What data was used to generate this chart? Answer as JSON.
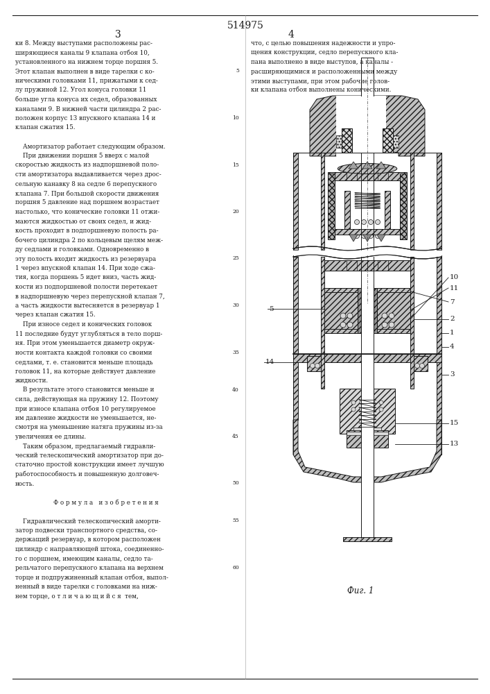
{
  "patent_number": "514975",
  "page_left": "3",
  "page_right": "4",
  "fig_label": "Фиг. 1",
  "background_color": "#ffffff",
  "text_color": "#1a1a1a",
  "line_color": "#1a1a1a",
  "col_left_text": [
    "ки 8. Между выступами расположены рас-",
    "ширяющиеся каналы 9 клапана отбоя 10,",
    "установленного на нижнем торце поршня 5.",
    "Этот клапан выполнен в виде тарелки с ко-",
    "ническими головками 11, прижатыми к сед-",
    "лу пружиной 12. Угол конуса головки 11",
    "больше угла конуса их седел, образованных",
    "каналами 9. В нижней части цилиндра 2 рас-",
    "положен корпус 13 впускного клапана 14 и",
    "клапан сжатия 15.",
    "",
    "    Амортизатор работает следующим образом.",
    "    При движении поршня 5 вверх с малой",
    "скоростью жидкость из надпоршневой поло-",
    "сти амортизатора выдавливается через дрос-",
    "сельную канавку 8 на седле 6 перепускного",
    "клапана 7. При большой скорости движения",
    "поршня 5 давление над поршнем возрастает",
    "настолько, что конические головки 11 отжи-",
    "маются жидкостью от своих седел, и жид-",
    "кость проходит в подпоршневую полость ра-",
    "бочего цилиндра 2 по кольцевым щелям меж-",
    "ду седлами и головками. Одновременно в",
    "эту полость входит жидкость из резервуара",
    "1 через впускной клапан 14. При ходе сжа-",
    "тия, когда поршень 5 идет вниз, часть жид-",
    "кости из подпоршневой полости перетекает",
    "в надпоршневую через перепускной клапан 7,",
    "а часть жидкости вытесняется в резервуар 1",
    "через клапан сжатия 15.",
    "    При износе седел и конических головок",
    "11 последние будут углубляться в тело порш-",
    "ня. При этом уменьшается диаметр окруж-",
    "ности контакта каждой головки со своими",
    "седлами, т. е. становится меньше площадь",
    "головок 11, на которые действует давление",
    "жидкости.",
    "    В результате этого становится меньше и",
    "сила, действующая на пружину 12. Поэтому",
    "при износе клапана отбоя 10 регулируемое",
    "им давление жидкости не уменьшается, не-",
    "смотря на уменьшение натяга пружины из-за",
    "увеличения ее длины.",
    "    Таким образом, предлагаемый гидравли-",
    "ческий телескопический амортизатор при до-",
    "статочно простой конструкции имеет лучшую",
    "работоспособность и повышенную долговеч-",
    "ность.",
    "",
    "    Ф о р м у л а   и з о б р е т е н и я",
    "",
    "    Гидравлический телескопический аморти-",
    "затор подвески транспортного средства, со-",
    "держащий резервуар, в котором расположен",
    "цилиндр с направляющей штока, соединенно-",
    "го с поршнем, имеющим каналы, седло та-",
    "рельчатого перепускного клапана на верхнем",
    "торце и подпружиненный клапан отбоя, выпол-",
    "ненный в виде тарелки с головками на ниж-",
    "нем торце, о т л и ч а ю щ и й с я  тем,"
  ],
  "col_right_text": [
    "что, с целью повышения надежности и упро-",
    "щения конструкции, седло перепускного кла-",
    "пана выполнено в виде выступов, а каналы -",
    "расширяющимися и расположенными между",
    "этими выступами, при этом рабочие голов-",
    "ки клапана отбоя выполнены коническими."
  ],
  "line_numbers": [
    5,
    10,
    15,
    20,
    25,
    30,
    35,
    40,
    45,
    50,
    55,
    60
  ],
  "hatch_color": "#888888",
  "hatch_face": "#cccccc"
}
